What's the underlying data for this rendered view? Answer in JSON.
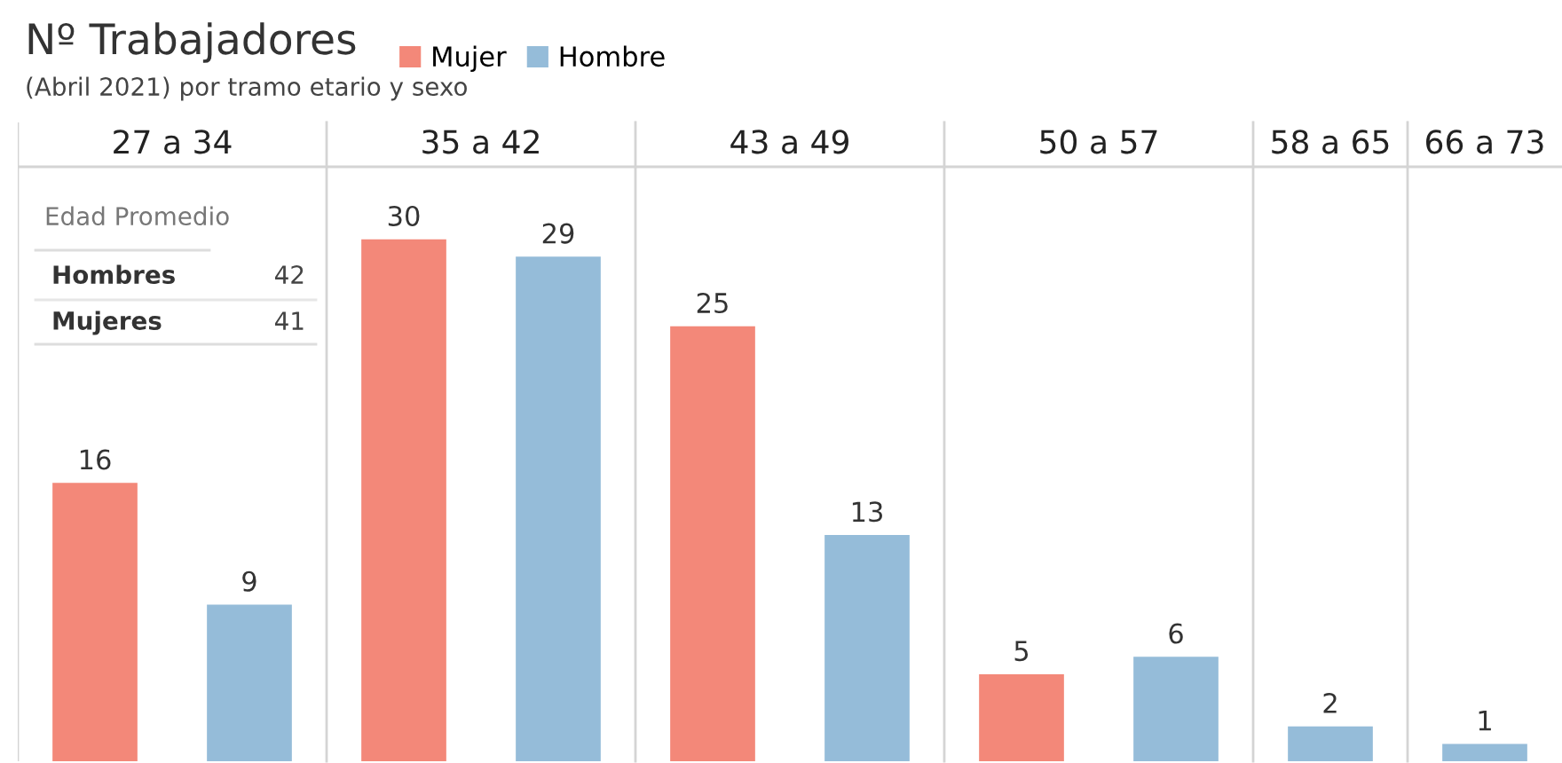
{
  "chart_data": {
    "type": "bar",
    "title": "Nº Trabajadores",
    "subtitle": "(Abril 2021) por tramo etario y sexo",
    "categories": [
      "27 a 34",
      "35 a 42",
      "43 a 49",
      "50 a 57",
      "58 a 65",
      "66 a 73"
    ],
    "series": [
      {
        "name": "Mujer",
        "color": "#f38879",
        "values": [
          16,
          30,
          25,
          5,
          null,
          null
        ]
      },
      {
        "name": "Hombre",
        "color": "#95bcd9",
        "values": [
          9,
          29,
          13,
          6,
          2,
          1
        ]
      }
    ],
    "data_labels": true,
    "legend": "top left",
    "annotations": [
      "Edad Promedio",
      "Hombres",
      "42",
      "Mujeres",
      "41"
    ]
  }
}
